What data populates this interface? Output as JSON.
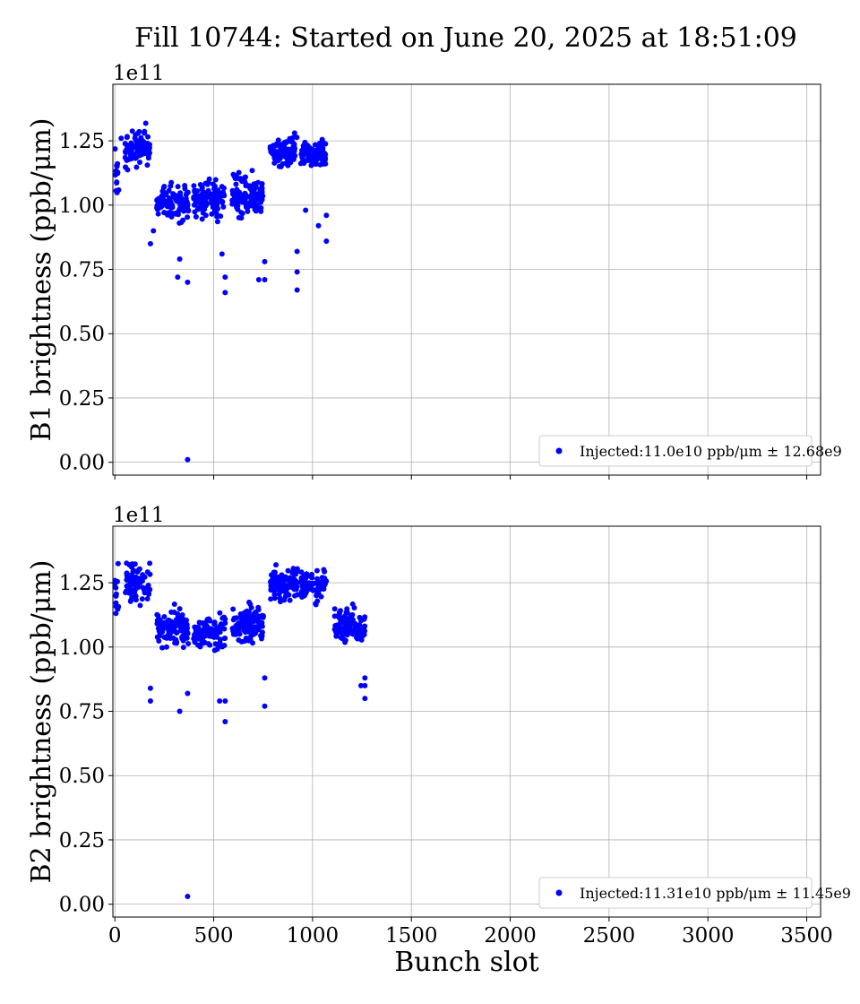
{
  "figure": {
    "title": "Fill 10744: Started on June 20, 2025 at 18:51:09"
  },
  "chart_data": [
    {
      "type": "scatter",
      "ylabel": "B1 brightness (ppb/μm)",
      "xlabel": "",
      "offset_text": "1e11",
      "xlim": [
        -10,
        3570
      ],
      "ylim": [
        -5000000000.0,
        147000000000.0
      ],
      "xticks": [
        0,
        500,
        1000,
        1500,
        2000,
        2500,
        3000,
        3500
      ],
      "xtick_labels_visible": false,
      "yticks": [
        0,
        25000000000.0,
        50000000000.0,
        75000000000.0,
        100000000000.0,
        125000000000.0
      ],
      "ytick_labels": [
        "0.00",
        "0.25",
        "0.50",
        "0.75",
        "1.00",
        "1.25"
      ],
      "grid": true,
      "legend_position": "lower-right",
      "series": [
        {
          "name": "Injected:11.0e10 ppb/μm ± 12.68e9",
          "color": "#0000ff",
          "point_count": 640,
          "x_range": [
            0,
            1070
          ],
          "groups": [
            {
              "x": [
                0,
                20
              ],
              "center": 112000000000.0,
              "spread": 8000000000.0
            },
            {
              "x": [
                52,
                178
              ],
              "center": 122000000000.0,
              "spread": 6000000000.0
            },
            {
              "x": [
                212,
                372
              ],
              "center": 101000000000.0,
              "spread": 6000000000.0
            },
            {
              "x": [
                398,
                558
              ],
              "center": 103000000000.0,
              "spread": 7000000000.0
            },
            {
              "x": [
                592,
                752
              ],
              "center": 104000000000.0,
              "spread": 7000000000.0
            },
            {
              "x": [
                786,
                926
              ],
              "center": 121000000000.0,
              "spread": 5000000000.0
            },
            {
              "x": [
                940,
                1070
              ],
              "center": 120000000000.0,
              "spread": 5000000000.0
            }
          ],
          "outliers": [
            {
              "x": 368,
              "y": 1000000000.0
            },
            {
              "x": 32,
              "y": 126000000000.0
            },
            {
              "x": 180,
              "y": 85000000000.0
            },
            {
              "x": 195,
              "y": 90000000000.0
            },
            {
              "x": 328,
              "y": 79000000000.0
            },
            {
              "x": 318,
              "y": 72000000000.0
            },
            {
              "x": 368,
              "y": 70000000000.0
            },
            {
              "x": 558,
              "y": 66000000000.0
            },
            {
              "x": 558,
              "y": 72000000000.0
            },
            {
              "x": 542,
              "y": 81000000000.0
            },
            {
              "x": 728,
              "y": 71000000000.0
            },
            {
              "x": 758,
              "y": 71000000000.0
            },
            {
              "x": 758,
              "y": 78000000000.0
            },
            {
              "x": 922,
              "y": 67000000000.0
            },
            {
              "x": 922,
              "y": 74000000000.0
            },
            {
              "x": 922,
              "y": 82000000000.0
            },
            {
              "x": 1070,
              "y": 86000000000.0
            },
            {
              "x": 1070,
              "y": 96000000000.0
            },
            {
              "x": 1030,
              "y": 92000000000.0
            },
            {
              "x": 965,
              "y": 98000000000.0
            }
          ]
        }
      ]
    },
    {
      "type": "scatter",
      "ylabel": "B2 brightness (ppb/μm)",
      "xlabel": "Bunch slot",
      "offset_text": "1e11",
      "xlim": [
        -10,
        3570
      ],
      "ylim": [
        -5000000000.0,
        147000000000.0
      ],
      "xticks": [
        0,
        500,
        1000,
        1500,
        2000,
        2500,
        3000,
        3500
      ],
      "xtick_labels": [
        "0",
        "500",
        "1000",
        "1500",
        "2000",
        "2500",
        "3000",
        "3500"
      ],
      "yticks": [
        0,
        25000000000.0,
        50000000000.0,
        75000000000.0,
        100000000000.0,
        125000000000.0
      ],
      "ytick_labels": [
        "0.00",
        "0.25",
        "0.50",
        "0.75",
        "1.00",
        "1.25"
      ],
      "grid": true,
      "legend_position": "lower-right",
      "series": [
        {
          "name": "Injected:11.31e10 ppb/μm ± 11.45e9",
          "color": "#0000ff",
          "point_count": 760,
          "x_range": [
            0,
            1265
          ],
          "groups": [
            {
              "x": [
                0,
                20
              ],
              "center": 122000000000.0,
              "spread": 8000000000.0
            },
            {
              "x": [
                52,
                178
              ],
              "center": 126000000000.0,
              "spread": 7000000000.0
            },
            {
              "x": [
                212,
                372
              ],
              "center": 107000000000.0,
              "spread": 6000000000.0
            },
            {
              "x": [
                398,
                558
              ],
              "center": 106000000000.0,
              "spread": 6000000000.0
            },
            {
              "x": [
                592,
                752
              ],
              "center": 109000000000.0,
              "spread": 6000000000.0
            },
            {
              "x": [
                786,
                926
              ],
              "center": 124000000000.0,
              "spread": 5000000000.0
            },
            {
              "x": [
                940,
                1070
              ],
              "center": 124000000000.0,
              "spread": 5000000000.0
            },
            {
              "x": [
                1110,
                1265
              ],
              "center": 108000000000.0,
              "spread": 6000000000.0
            }
          ],
          "outliers": [
            {
              "x": 368,
              "y": 3000000000.0
            },
            {
              "x": 180,
              "y": 79000000000.0
            },
            {
              "x": 180,
              "y": 84000000000.0
            },
            {
              "x": 328,
              "y": 75000000000.0
            },
            {
              "x": 368,
              "y": 82000000000.0
            },
            {
              "x": 530,
              "y": 79000000000.0
            },
            {
              "x": 558,
              "y": 71000000000.0
            },
            {
              "x": 558,
              "y": 79000000000.0
            },
            {
              "x": 758,
              "y": 77000000000.0
            },
            {
              "x": 758,
              "y": 88000000000.0
            },
            {
              "x": 1245,
              "y": 85000000000.0
            },
            {
              "x": 1265,
              "y": 80000000000.0
            },
            {
              "x": 1265,
              "y": 88000000000.0
            },
            {
              "x": 1265,
              "y": 85000000000.0
            }
          ]
        }
      ]
    }
  ]
}
